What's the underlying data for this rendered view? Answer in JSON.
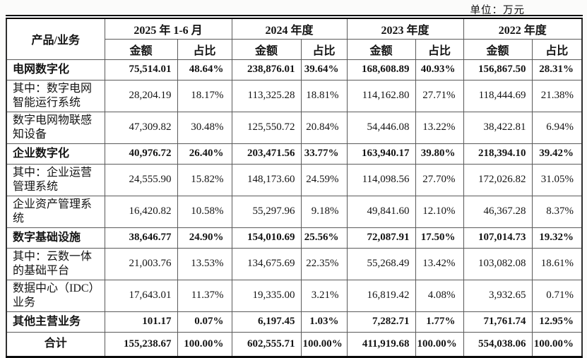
{
  "page": {
    "unit_label": "单位：万元"
  },
  "table": {
    "product_header": "产品/业务",
    "amount_header": "金额",
    "ratio_header": "占比",
    "periods": [
      {
        "label": "2025 年 1-6 月"
      },
      {
        "label": "2024 年度"
      },
      {
        "label": "2023 年度"
      },
      {
        "label": "2022 年度"
      }
    ],
    "rows": [
      {
        "label": "电网数字化",
        "bold": true,
        "total": false,
        "values": [
          "75,514.01",
          "48.64%",
          "238,876.01",
          "39.64%",
          "168,608.89",
          "40.93%",
          "156,867.50",
          "28.31%"
        ]
      },
      {
        "label": "其中：数字电网智能运行系统",
        "bold": false,
        "total": false,
        "values": [
          "28,204.19",
          "18.17%",
          "113,325.28",
          "18.81%",
          "114,162.80",
          "27.71%",
          "118,444.69",
          "21.38%"
        ]
      },
      {
        "label": "数字电网物联感知设备",
        "bold": false,
        "total": false,
        "values": [
          "47,309.82",
          "30.48%",
          "125,550.72",
          "20.84%",
          "54,446.08",
          "13.22%",
          "38,422.81",
          "6.94%"
        ]
      },
      {
        "label": "企业数字化",
        "bold": true,
        "total": false,
        "values": [
          "40,976.72",
          "26.40%",
          "203,471.56",
          "33.77%",
          "163,940.17",
          "39.80%",
          "218,394.10",
          "39.42%"
        ]
      },
      {
        "label": "其中：企业运营管理系统",
        "bold": false,
        "total": false,
        "values": [
          "24,555.90",
          "15.82%",
          "148,173.60",
          "24.59%",
          "114,098.56",
          "27.70%",
          "172,026.82",
          "31.05%"
        ]
      },
      {
        "label": "企业资产管理系统",
        "bold": false,
        "total": false,
        "values": [
          "16,420.82",
          "10.58%",
          "55,297.96",
          "9.18%",
          "49,841.60",
          "12.10%",
          "46,367.28",
          "8.37%"
        ]
      },
      {
        "label": "数字基础设施",
        "bold": true,
        "total": false,
        "values": [
          "38,646.77",
          "24.90%",
          "154,010.69",
          "25.56%",
          "72,087.91",
          "17.50%",
          "107,014.73",
          "19.32%"
        ]
      },
      {
        "label": "其中：云数一体的基础平台",
        "bold": false,
        "total": false,
        "values": [
          "21,003.76",
          "13.53%",
          "134,675.69",
          "22.35%",
          "55,268.49",
          "13.42%",
          "103,082.08",
          "18.61%"
        ]
      },
      {
        "label": "数据中心（IDC）业务",
        "bold": false,
        "total": false,
        "values": [
          "17,643.01",
          "11.37%",
          "19,335.00",
          "3.21%",
          "16,819.42",
          "4.08%",
          "3,932.65",
          "0.71%"
        ]
      },
      {
        "label": "其他主营业务",
        "bold": true,
        "total": false,
        "values": [
          "101.17",
          "0.07%",
          "6,197.45",
          "1.03%",
          "7,282.71",
          "1.77%",
          "71,761.74",
          "12.95%"
        ]
      },
      {
        "label": "合计",
        "bold": true,
        "total": true,
        "values": [
          "155,238.67",
          "100.00%",
          "602,555.71",
          "100.00%",
          "411,919.68",
          "100.00%",
          "554,038.06",
          "100.00%"
        ]
      }
    ]
  }
}
